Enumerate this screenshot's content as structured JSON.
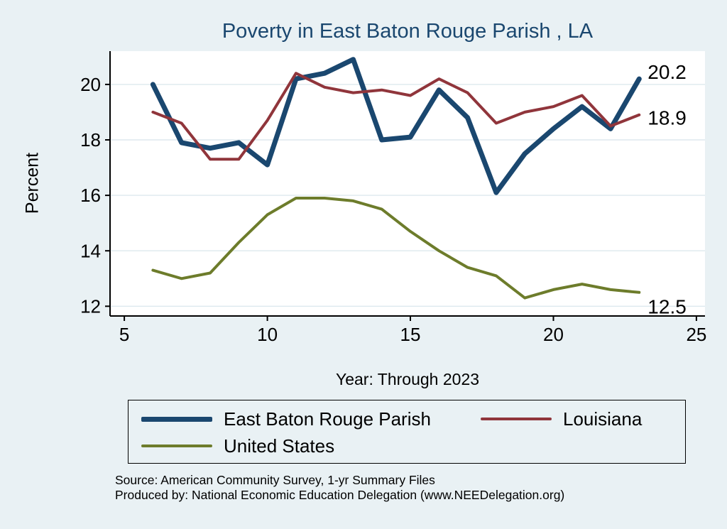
{
  "page": {
    "background_color": "#e9f1f4",
    "title_color": "#1a476f",
    "source_line1": "Source: American Community Survey, 1-yr Summary Files",
    "source_line2": "Produced by: National Economic Education Delegation (www.NEEDelegation.org)"
  },
  "chart_data": {
    "type": "line",
    "title": "Poverty in East Baton Rouge Parish , LA",
    "xlabel": "Year: Through 2023",
    "ylabel": "Percent",
    "x": [
      6,
      7,
      8,
      9,
      10,
      11,
      12,
      13,
      14,
      15,
      16,
      17,
      18,
      19,
      20,
      21,
      22,
      23
    ],
    "series": [
      {
        "name": "East Baton Rouge Parish",
        "color": "#1a476f",
        "line_width": 7,
        "values": [
          20.0,
          17.9,
          17.7,
          17.9,
          17.1,
          20.2,
          20.4,
          20.9,
          18.0,
          18.1,
          19.8,
          18.8,
          16.1,
          17.5,
          18.4,
          19.2,
          18.4,
          20.2
        ],
        "end_label": "20.2",
        "end_label_offset_y": -10
      },
      {
        "name": "Louisiana",
        "color": "#90353b",
        "line_width": 4,
        "values": [
          19.0,
          18.6,
          17.3,
          17.3,
          18.7,
          20.4,
          19.9,
          19.7,
          19.8,
          19.6,
          20.2,
          19.7,
          18.6,
          19.0,
          19.2,
          19.6,
          18.5,
          18.9
        ],
        "end_label": "18.9",
        "end_label_offset_y": 4
      },
      {
        "name": "United States",
        "color": "#6d7c2b",
        "line_width": 4,
        "values": [
          13.3,
          13.0,
          13.2,
          14.3,
          15.3,
          15.9,
          15.9,
          15.8,
          15.5,
          14.7,
          14.0,
          13.4,
          13.1,
          12.3,
          12.6,
          12.8,
          12.6,
          12.5
        ],
        "end_label": "12.5",
        "end_label_offset_y": 20
      }
    ],
    "xlim": [
      4.5,
      25.3
    ],
    "ylim": [
      11.65,
      21.2
    ],
    "xticks": [
      5,
      10,
      15,
      20,
      25
    ],
    "yticks": [
      12,
      14,
      16,
      18,
      20
    ],
    "grid": "horizontal",
    "gridline_color": "#dde9ee",
    "legend_position": "bottom"
  }
}
